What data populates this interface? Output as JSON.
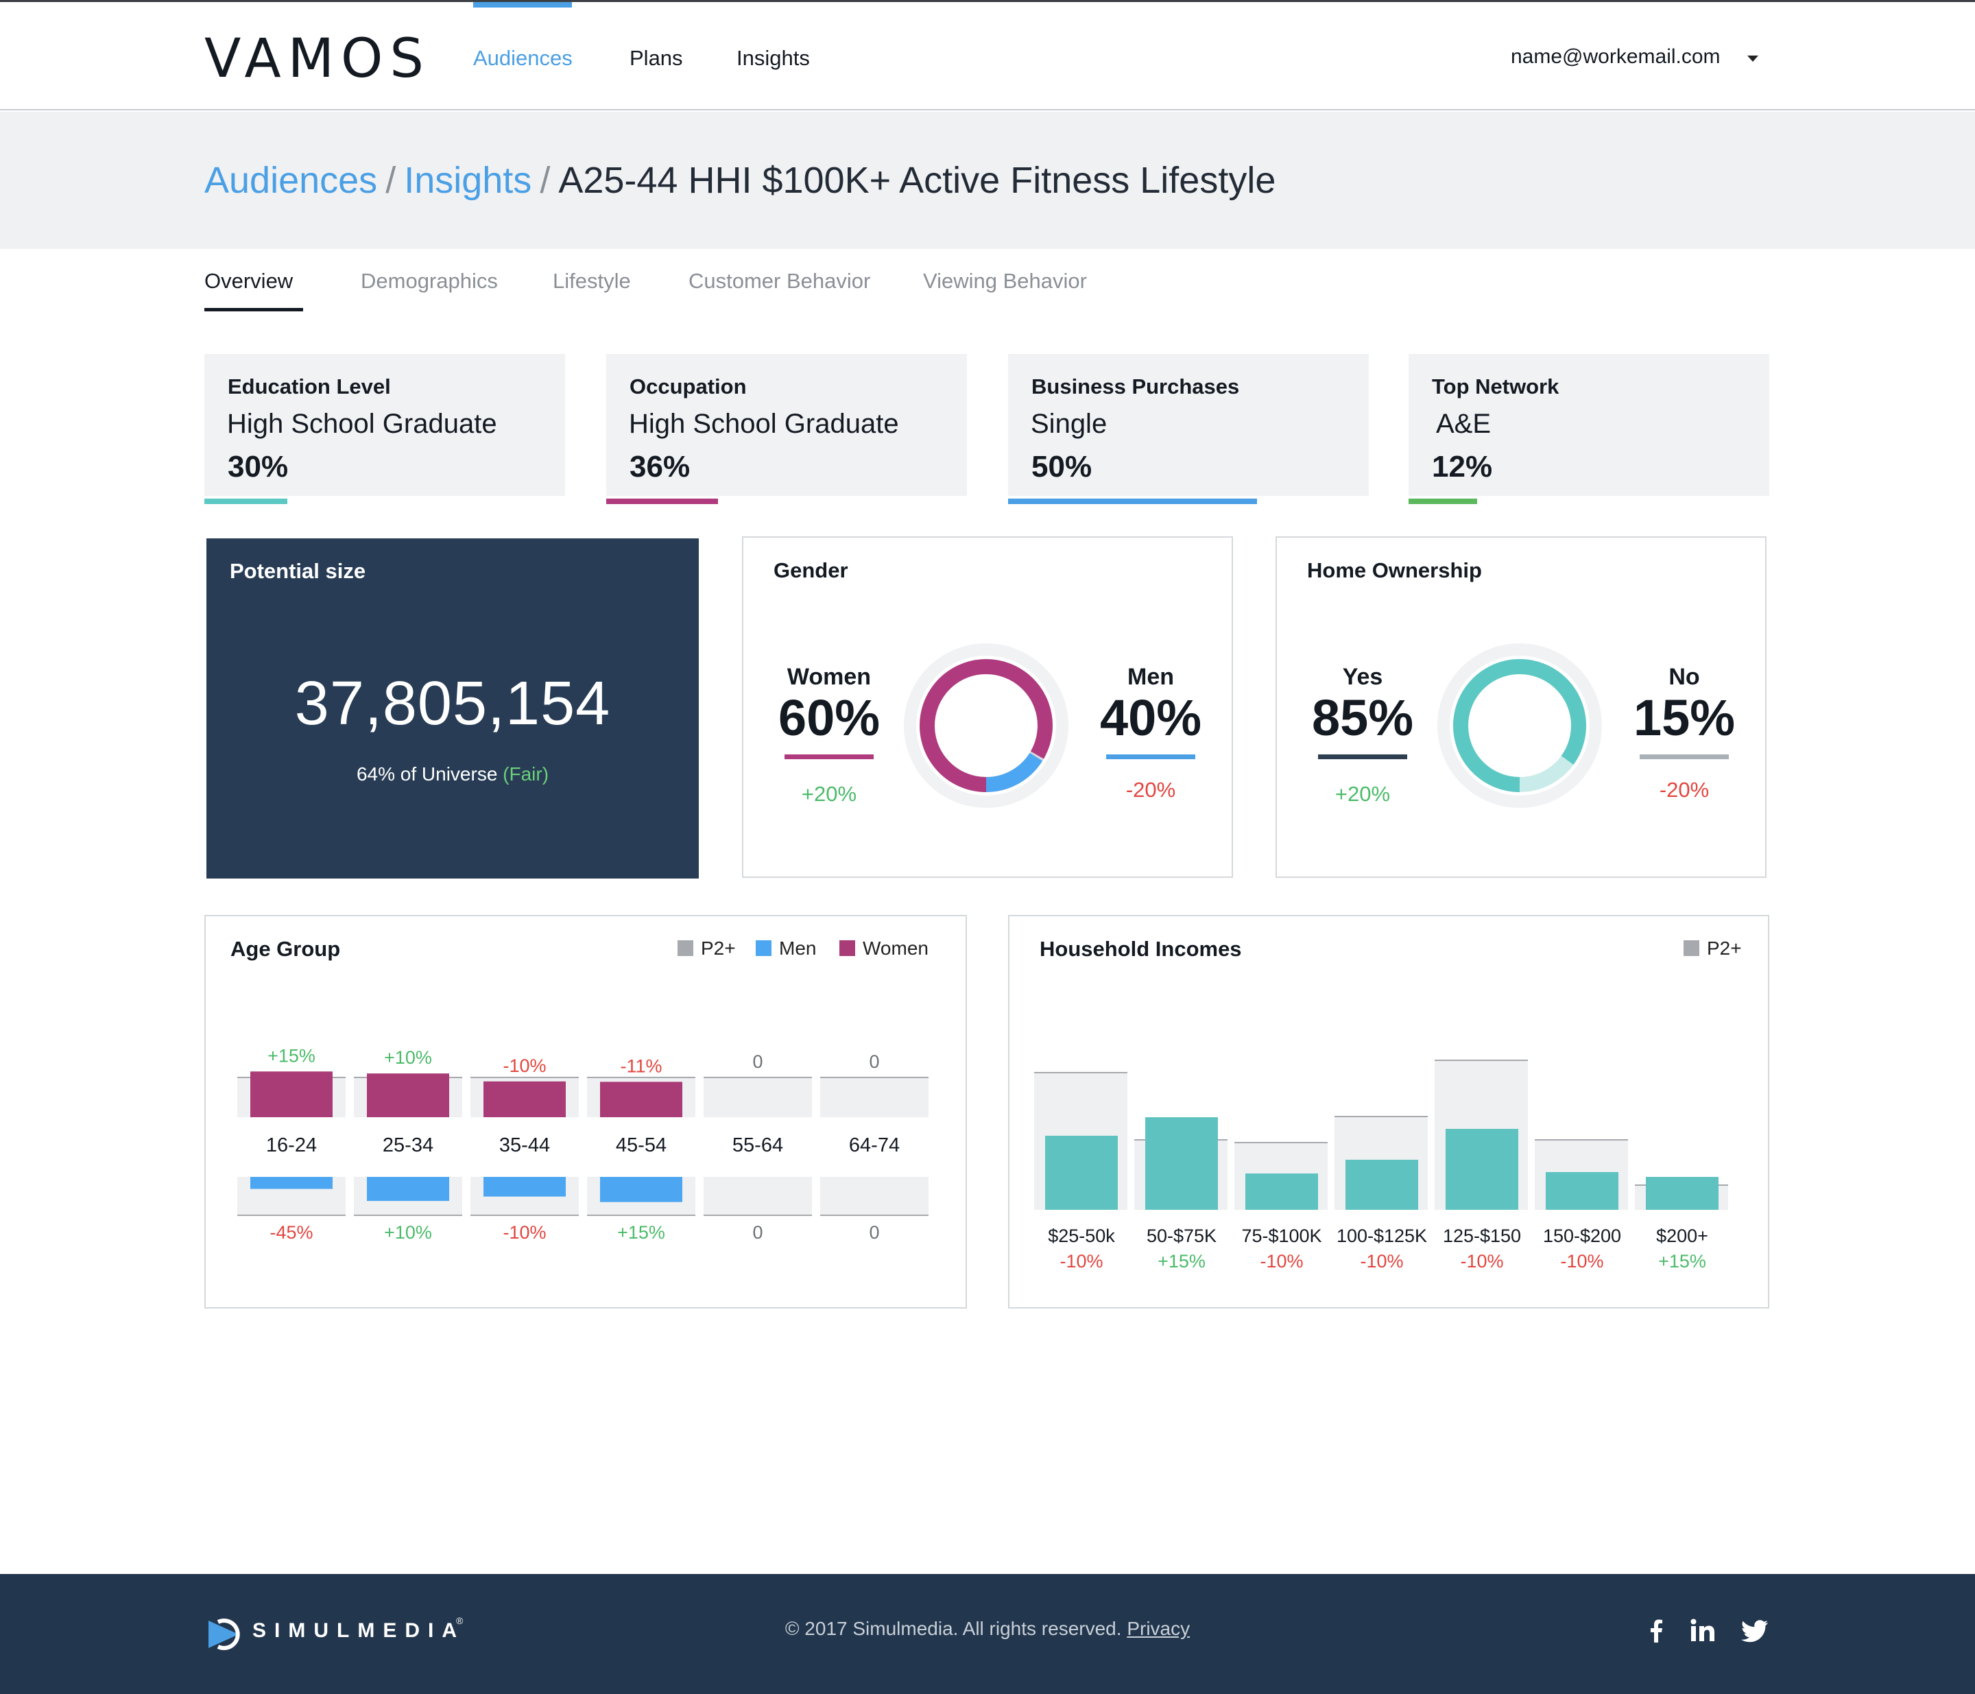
{
  "header": {
    "logo": "VAMOS",
    "nav": [
      "Audiences",
      "Plans",
      "Insights"
    ],
    "user": "name@workemail.com"
  },
  "breadcrumb": {
    "items": [
      "Audiences",
      "Insights"
    ],
    "current": "A25-44 HHI $100K+ Active Fitness Lifestyle"
  },
  "tabs": [
    "Overview",
    "Demographics",
    "Lifestyle",
    "Customer Behavior",
    "Viewing Behavior"
  ],
  "stats": [
    {
      "label": "Education Level",
      "value": "High School Graduate",
      "pct": "30%",
      "fill": 0.23,
      "color": "#5cc8c4"
    },
    {
      "label": "Occupation",
      "value": "High School Graduate",
      "pct": "36%",
      "fill": 0.31,
      "color": "#b03a7e"
    },
    {
      "label": "Business Purchases",
      "value": "Single",
      "pct": "50%",
      "fill": 0.69,
      "color": "#4a9fe5"
    },
    {
      "label": "Top Network",
      "value": "A&E",
      "pct": "12%",
      "fill": 0.19,
      "color": "#5cb85c"
    }
  ],
  "potential": {
    "title": "Potential size",
    "value": "37,805,154",
    "sub": "64% of Universe",
    "rating": "(Fair)"
  },
  "gender": {
    "title": "Gender",
    "left": {
      "label": "Women",
      "pct": "60%",
      "delta": "+20%",
      "color": "#b03a7e"
    },
    "right": {
      "label": "Men",
      "pct": "40%",
      "delta": "-20%",
      "color": "#4a9fe5"
    }
  },
  "home": {
    "title": "Home Ownership",
    "left": {
      "label": "Yes",
      "pct": "85%",
      "delta": "+20%",
      "color": "#2c3e50"
    },
    "right": {
      "label": "No",
      "pct": "15%",
      "delta": "-20%",
      "color": "#a9b0b6"
    }
  },
  "age": {
    "title": "Age Group",
    "legend": [
      "P2+",
      "Men",
      "Women"
    ]
  },
  "income": {
    "title": "Household Incomes",
    "legend": [
      "P2+"
    ]
  },
  "chart_data": [
    {
      "type": "bar",
      "title": "Age Group",
      "categories": [
        "16-24",
        "25-34",
        "35-44",
        "45-54",
        "55-64",
        "64-74"
      ],
      "series": [
        {
          "name": "Women",
          "values": [
            15,
            10,
            -10,
            -11,
            0,
            0
          ],
          "labels": [
            "+15%",
            "+10%",
            "-10%",
            "-11%",
            "0",
            "0"
          ]
        },
        {
          "name": "Men",
          "values": [
            -45,
            10,
            -10,
            15,
            0,
            0
          ],
          "labels": [
            "-45%",
            "+10%",
            "-10%",
            "+15%",
            "0",
            "0"
          ]
        }
      ],
      "colors": {
        "P2+": "#a6a9ad",
        "Men": "#4da6f2",
        "Women": "#a93b77"
      }
    },
    {
      "type": "bar",
      "title": "Household Incomes",
      "categories": [
        "$25-50k",
        "50-$75K",
        "75-$100K",
        "100-$125K",
        "125-$150",
        "150-$200",
        "$200+"
      ],
      "series": [
        {
          "name": "P2+",
          "values": [
            -10,
            15,
            -10,
            -10,
            -10,
            -10,
            15
          ],
          "labels": [
            "-10%",
            "+15%",
            "-10%",
            "-10%",
            "-10%",
            "-10%",
            "+15%"
          ]
        }
      ],
      "colors": {
        "P2+": "#a6a9ad",
        "bars": "#5ec2c0"
      }
    }
  ],
  "footer": {
    "brand": "SIMULMEDIA",
    "reg": "®",
    "copyright": "© 2017 Simulmedia. All rights reserved.",
    "privacy": "Privacy"
  }
}
